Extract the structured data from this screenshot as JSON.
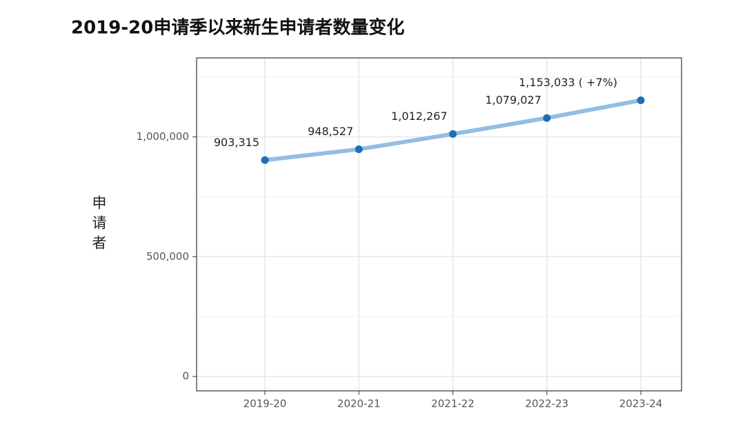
{
  "chart_data": {
    "type": "line",
    "title": "2019-20申请季以来新生申请者数量变化",
    "y_label": "申请者",
    "categories": [
      "2019-20",
      "2020-21",
      "2021-22",
      "2022-23",
      "2023-24"
    ],
    "series": [
      {
        "name": "申请者",
        "line_color": "#94bde3",
        "color": "#1f6db5",
        "values": [
          903315,
          948527,
          1012267,
          1079027,
          1153033
        ],
        "value_labels": [
          "903,315",
          "948,527",
          "1,012,267",
          "1,079,027",
          "1,153,033 ( +7%)"
        ]
      }
    ],
    "ylim": [
      -60000,
      1330000
    ],
    "yticks": [
      0,
      {
        "value": 500000,
        "label": "500,000"
      },
      {
        "value": 1000000,
        "label": "1,000,000"
      }
    ],
    "yminor": [
      250000,
      750000,
      1250000
    ],
    "grid": true
  }
}
